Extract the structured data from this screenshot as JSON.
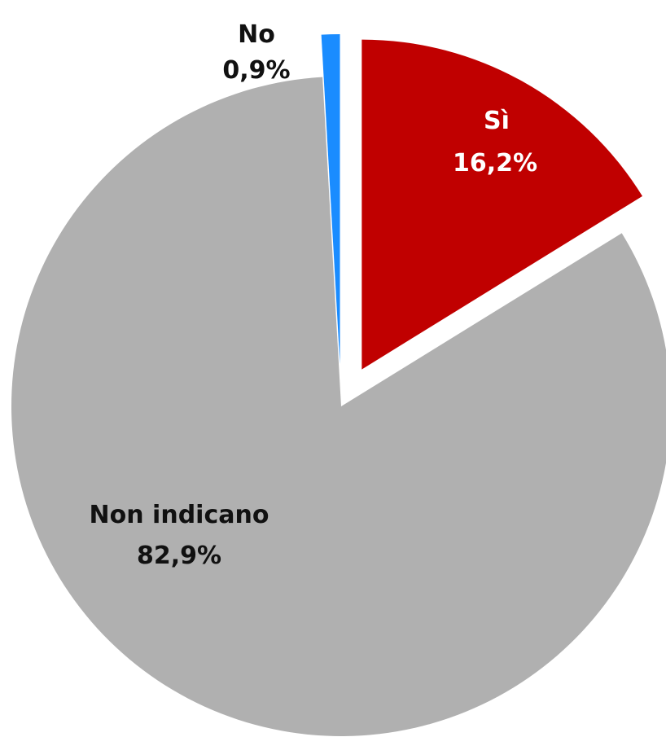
{
  "chart_data": {
    "type": "pie",
    "title": "",
    "slices": [
      {
        "name": "Sì",
        "value": 16.2,
        "value_label": "16,2%",
        "color": "#c00000",
        "exploded": true,
        "label_color": "#ffffff"
      },
      {
        "name": "Non indicano",
        "value": 82.9,
        "value_label": "82,9%",
        "color": "#b0b0b0",
        "exploded": false,
        "label_color": "#111111"
      },
      {
        "name": "No",
        "value": 0.9,
        "value_label": "0,9%",
        "color": "#1a8cff",
        "exploded": true,
        "label_color": "#111111"
      }
    ],
    "start_angle": "12 o'clock",
    "direction": "clockwise",
    "legend": "none"
  }
}
